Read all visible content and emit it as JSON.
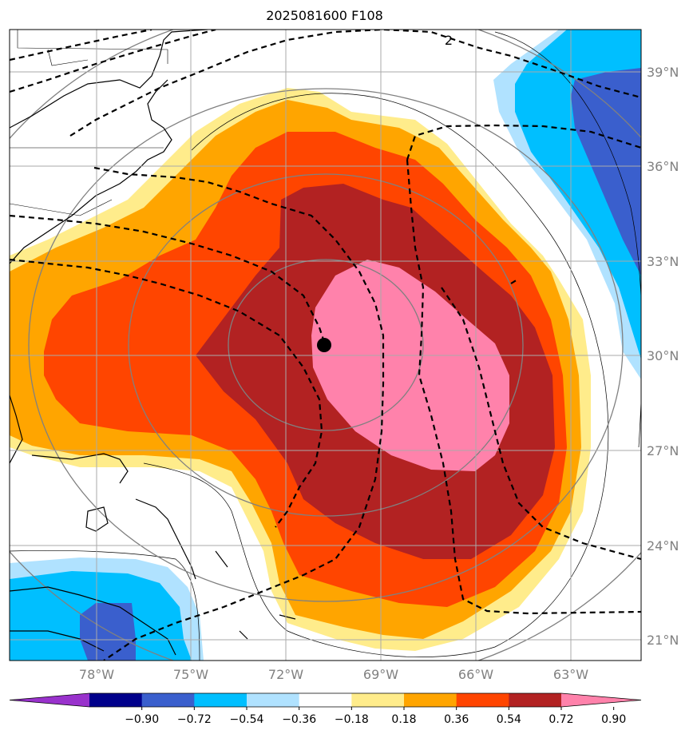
{
  "title": "2025081600 F108",
  "map": {
    "lat_labels": [
      "39°N",
      "36°N",
      "33°N",
      "30°N",
      "27°N",
      "24°N",
      "21°N"
    ],
    "lon_labels": [
      "78°W",
      "75°W",
      "72°W",
      "69°W",
      "66°W",
      "63°W"
    ],
    "contour_label": "2",
    "storm_center": {
      "lon": -70.8,
      "lat": 30.3
    }
  },
  "colorbar": {
    "ticks": [
      "−0.90",
      "−0.72",
      "−0.54",
      "−0.36",
      "−0.18",
      "0.18",
      "0.36",
      "0.54",
      "0.72",
      "0.90"
    ],
    "colors": [
      "#9932CC",
      "#00008B",
      "#3A5FCD",
      "#00BFFF",
      "#B0E2FF",
      "#FFFFFF",
      "#FFEC8B",
      "#FFA500",
      "#FF4500",
      "#B22222",
      "#FF82AB"
    ]
  }
}
